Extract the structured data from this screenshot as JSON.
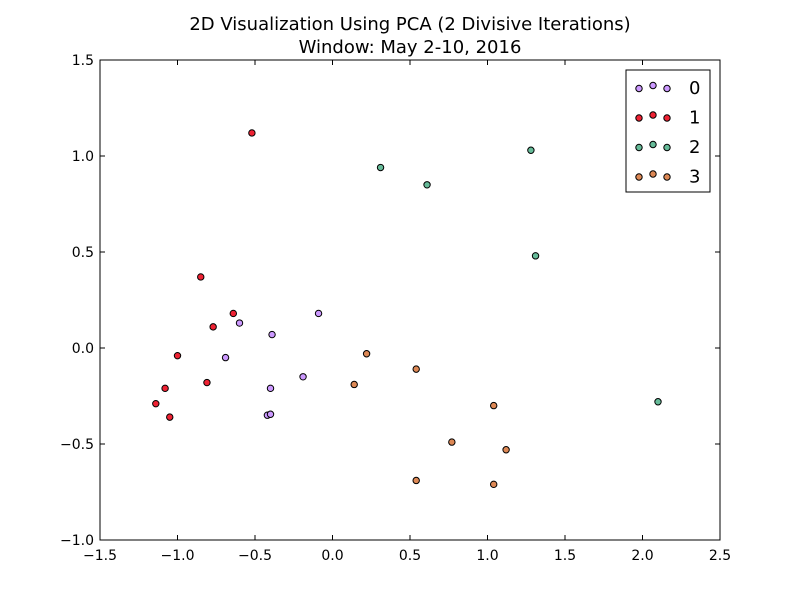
{
  "chart_data": {
    "type": "scatter",
    "title": "2D Visualization Using PCA (2 Divisive Iterations)",
    "subtitle": "Window: May 2-10, 2016",
    "xlabel": "",
    "ylabel": "",
    "xlim": [
      -1.5,
      2.5
    ],
    "ylim": [
      -1.0,
      1.5
    ],
    "xticks": [
      -1.5,
      -1.0,
      -0.5,
      0.0,
      0.5,
      1.0,
      1.5,
      2.0,
      2.5
    ],
    "yticks": [
      -1.0,
      -0.5,
      0.0,
      0.5,
      1.0,
      1.5
    ],
    "xtick_labels": [
      "−1.5",
      "−1.0",
      "−0.5",
      "0.0",
      "0.5",
      "1.0",
      "1.5",
      "2.0",
      "2.5"
    ],
    "ytick_labels": [
      "−1.0",
      "−0.5",
      "0.0",
      "0.5",
      "1.0",
      "1.5"
    ],
    "grid": false,
    "legend_position": "top-right",
    "series": [
      {
        "name": "0",
        "color": "#cc99ff",
        "points": [
          [
            -0.6,
            0.13
          ],
          [
            -0.39,
            0.07
          ],
          [
            -0.09,
            0.18
          ],
          [
            -0.69,
            -0.05
          ],
          [
            -0.19,
            -0.15
          ],
          [
            -0.4,
            -0.21
          ],
          [
            -0.42,
            -0.35
          ],
          [
            -0.4,
            -0.345
          ]
        ]
      },
      {
        "name": "1",
        "color": "#ee2233",
        "points": [
          [
            -0.52,
            1.12
          ],
          [
            -0.85,
            0.37
          ],
          [
            -0.64,
            0.18
          ],
          [
            -0.77,
            0.11
          ],
          [
            -1.0,
            -0.04
          ],
          [
            -0.81,
            -0.18
          ],
          [
            -1.08,
            -0.21
          ],
          [
            -1.14,
            -0.29
          ],
          [
            -1.05,
            -0.36
          ]
        ]
      },
      {
        "name": "2",
        "color": "#66bb99",
        "points": [
          [
            0.31,
            0.94
          ],
          [
            0.61,
            0.85
          ],
          [
            1.28,
            1.03
          ],
          [
            1.31,
            0.48
          ],
          [
            2.1,
            -0.28
          ]
        ]
      },
      {
        "name": "3",
        "color": "#dd8855",
        "points": [
          [
            0.22,
            -0.03
          ],
          [
            0.14,
            -0.19
          ],
          [
            0.54,
            -0.11
          ],
          [
            1.04,
            -0.3
          ],
          [
            0.77,
            -0.49
          ],
          [
            1.12,
            -0.53
          ],
          [
            0.54,
            -0.69
          ],
          [
            1.04,
            -0.71
          ]
        ]
      }
    ]
  }
}
